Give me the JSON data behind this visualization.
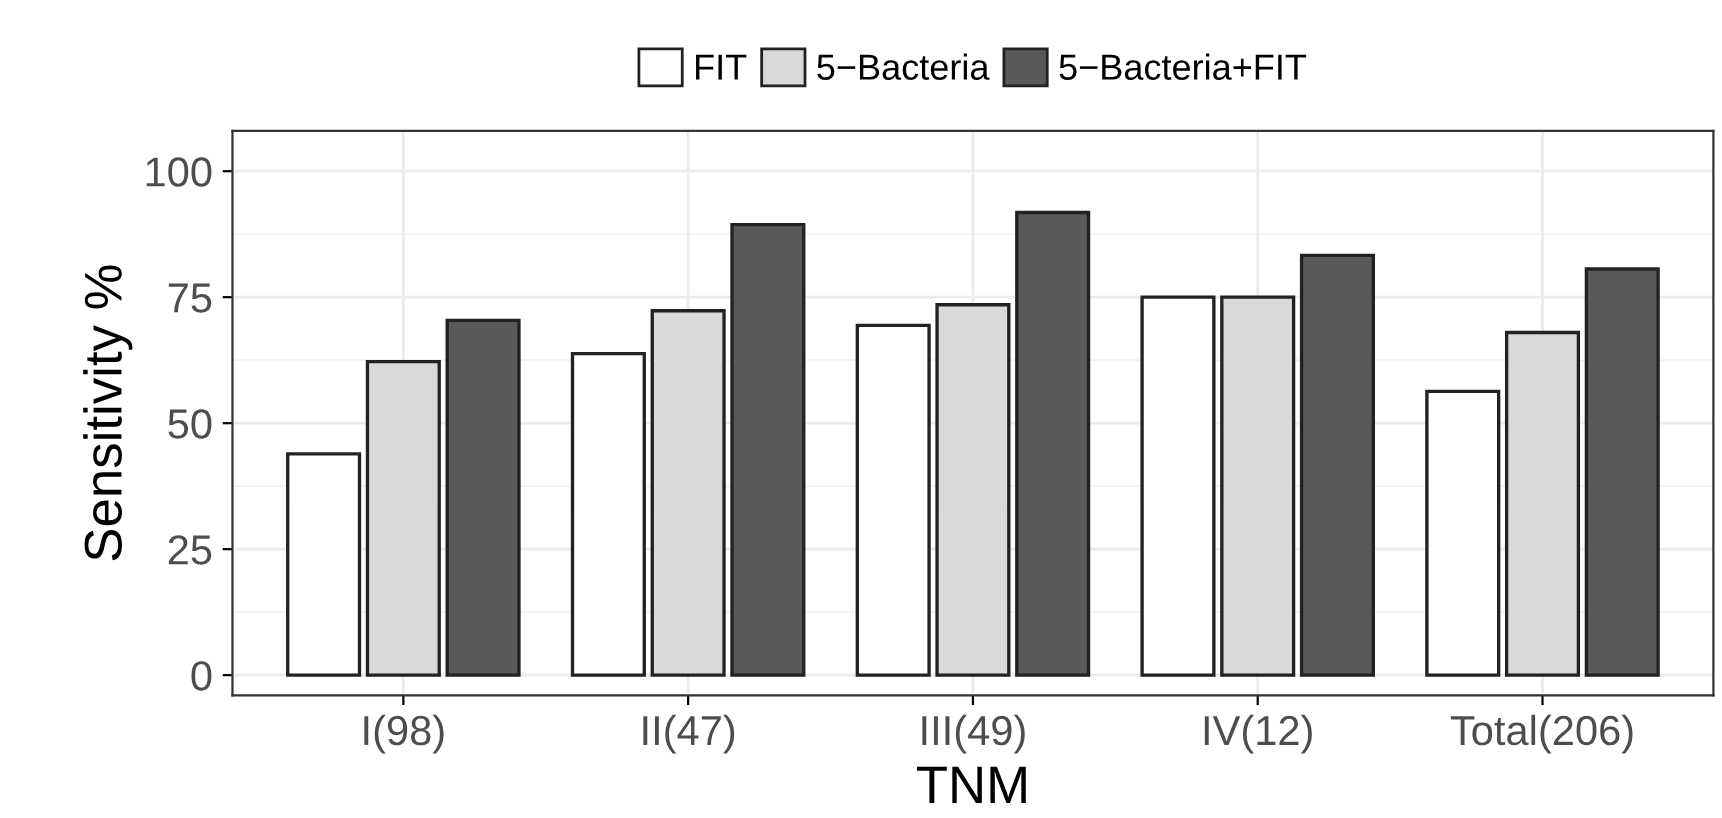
{
  "chart_data": {
    "type": "bar",
    "xlabel": "TNM",
    "ylabel": "Sensitivity %",
    "categories": [
      "I(98)",
      "II(47)",
      "III(49)",
      "IV(12)",
      "Total(206)"
    ],
    "series": [
      {
        "name": "FIT",
        "color": "#ffffff",
        "values": [
          43.9,
          63.8,
          69.4,
          75.0,
          56.3
        ]
      },
      {
        "name": "5−Bacteria",
        "color": "#d9d9d9",
        "values": [
          62.2,
          72.3,
          73.5,
          75.0,
          68.0
        ]
      },
      {
        "name": "5−Bacteria+FIT",
        "color": "#595959",
        "values": [
          70.4,
          89.4,
          91.8,
          83.3,
          80.6
        ]
      }
    ],
    "ylim": [
      -4,
      108
    ],
    "yticks": [
      0,
      25,
      50,
      75,
      100
    ],
    "grid": true,
    "legend": "top"
  }
}
